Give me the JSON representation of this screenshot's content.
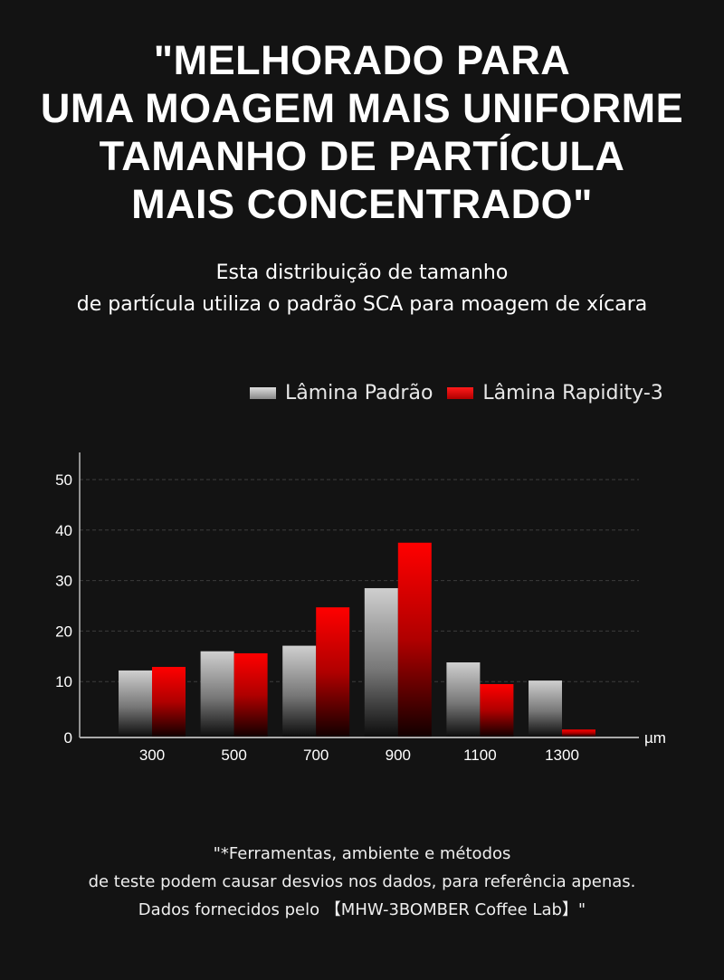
{
  "title_lines": [
    "\"MELHORADO PARA",
    "UMA MOAGEM MAIS UNIFORME",
    "TAMANHO DE PARTÍCULA",
    "MAIS CONCENTRADO\""
  ],
  "subtitle_lines": [
    "Esta distribuição de tamanho",
    "de partícula utiliza o padrão SCA para moagem de xícara"
  ],
  "footnote_lines": [
    "\"*Ferramentas, ambiente e métodos",
    "de teste podem causar desvios nos dados, para referência apenas.",
    "Dados fornecidos pelo 【MHW-3BOMBER Coffee Lab】\""
  ],
  "colors": {
    "standard": "#c8c8c8",
    "rapidity": "#ff0000",
    "background": "#131313"
  },
  "chart_data": {
    "type": "bar",
    "categories": [
      "300",
      "500",
      "700",
      "900",
      "1100",
      "1300"
    ],
    "series": [
      {
        "name": "Lâmina Padrão",
        "values": [
          12.2,
          16.0,
          17.1,
          28.5,
          13.8,
          10.2
        ]
      },
      {
        "name": "Lâmina Rapidity-3",
        "values": [
          12.9,
          15.6,
          24.7,
          37.5,
          9.5,
          0.5
        ]
      }
    ],
    "xlabel": "µm",
    "ylabel": "",
    "ylim": [
      0,
      50
    ],
    "yticks": [
      "0",
      "10",
      "20",
      "30",
      "40",
      "50"
    ],
    "grid": true,
    "legend": "top-right"
  }
}
